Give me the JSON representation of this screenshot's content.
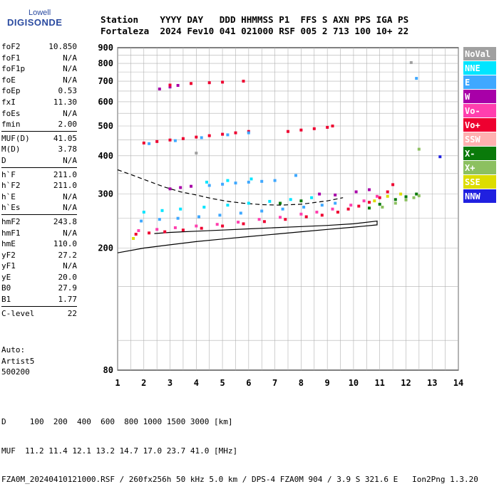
{
  "logo": {
    "top": "Lowell",
    "bottom": "DIGISONDE"
  },
  "header": {
    "line1": "Station    YYYY DAY   DDD HHMMSS P1  FFS S AXN PPS IGA PS",
    "line2": "Fortaleza  2024 Fev10 041 021000 RSF 005 2 713 100 10+ 22"
  },
  "params": {
    "groups": [
      [
        {
          "k": "foF2",
          "v": "10.850"
        },
        {
          "k": "foF1",
          "v": "N/A"
        },
        {
          "k": "foF1p",
          "v": "N/A"
        },
        {
          "k": "foE",
          "v": "N/A"
        },
        {
          "k": "foEp",
          "v": "0.53"
        },
        {
          "k": "fxI",
          "v": "11.30"
        },
        {
          "k": "foEs",
          "v": "N/A"
        },
        {
          "k": "fmin",
          "v": "2.00"
        }
      ],
      [
        {
          "k": "MUF(D)",
          "v": "41.05"
        },
        {
          "k": "M(D)",
          "v": "3.78"
        },
        {
          "k": "D",
          "v": "N/A"
        }
      ],
      [
        {
          "k": "h`F",
          "v": "211.0"
        },
        {
          "k": "h`F2",
          "v": "211.0"
        },
        {
          "k": "h`E",
          "v": "N/A"
        },
        {
          "k": "h`Es",
          "v": "N/A"
        }
      ],
      [
        {
          "k": "hmF2",
          "v": "243.8"
        },
        {
          "k": "hmF1",
          "v": "N/A"
        },
        {
          "k": "hmE",
          "v": "110.0"
        },
        {
          "k": "yF2",
          "v": "27.2"
        },
        {
          "k": "yF1",
          "v": "N/A"
        },
        {
          "k": "yE",
          "v": "20.0"
        },
        {
          "k": "B0",
          "v": "27.9"
        },
        {
          "k": "B1",
          "v": "1.77"
        }
      ],
      [
        {
          "k": "C-level",
          "v": "22"
        }
      ]
    ]
  },
  "auto": {
    "line1": "Auto:",
    "line2": "Artist5",
    "line3": "500200"
  },
  "bottom": {
    "line1": "D     100  200  400  600  800 1000 1500 3000 [km]",
    "line2": "MUF  11.2 11.4 12.1 13.2 14.7 17.0 23.7 41.0 [MHz]",
    "line3": "FZA0M_20240410121000.RSF / 260fx256h 50 kHz 5.0 km / DPS-4 FZA0M 904 / 3.9 S 321.6 E   Ion2Png 1.3.20"
  },
  "legend": [
    {
      "label": "NoVal",
      "color": "#a0a0a0"
    },
    {
      "label": "NNE",
      "color": "#00e5ff"
    },
    {
      "label": "E",
      "color": "#3fa8ff"
    },
    {
      "label": "W",
      "color": "#a800a8"
    },
    {
      "label": "Vo-",
      "color": "#ff3fae"
    },
    {
      "label": "Vo+",
      "color": "#ee0030"
    },
    {
      "label": "SSW",
      "color": "#ffb0b0"
    },
    {
      "label": "X-",
      "color": "#0a7a0a"
    },
    {
      "label": "X+",
      "color": "#8cc060"
    },
    {
      "label": "SSE",
      "color": "#dddd00"
    },
    {
      "label": "NNW",
      "color": "#2020e0"
    }
  ],
  "chart_data": {
    "type": "scatter",
    "xlim": [
      1,
      14
    ],
    "ylim": [
      80,
      900
    ],
    "yscale": "log",
    "xticks": [
      "1",
      "2",
      "3",
      "4",
      "5",
      "6",
      "7",
      "8",
      "9",
      "10",
      "11",
      "12",
      "13",
      "14"
    ],
    "yticks": [
      "80",
      "200",
      "300",
      "400",
      "500",
      "600",
      "700",
      "800",
      "900"
    ],
    "yticks_values": [
      80,
      200,
      300,
      400,
      500,
      600,
      700,
      800,
      900
    ],
    "grid": true,
    "legend_position": "right",
    "series": [
      {
        "color": "#ee0030",
        "points": [
          [
            1.7,
            222
          ],
          [
            2.2,
            224
          ],
          [
            2.8,
            226
          ],
          [
            3.5,
            229
          ],
          [
            4.2,
            232
          ],
          [
            5.0,
            236
          ],
          [
            5.8,
            240
          ],
          [
            6.6,
            244
          ],
          [
            7.4,
            248
          ],
          [
            8.2,
            253
          ],
          [
            8.8,
            256
          ],
          [
            9.4,
            262
          ],
          [
            9.8,
            268
          ],
          [
            10.2,
            274
          ],
          [
            10.6,
            282
          ],
          [
            11.0,
            292
          ],
          [
            11.3,
            305
          ],
          [
            11.5,
            322
          ]
        ]
      },
      {
        "color": "#ff3fae",
        "points": [
          [
            1.8,
            228
          ],
          [
            2.5,
            230
          ],
          [
            3.2,
            233
          ],
          [
            4.0,
            236
          ],
          [
            4.8,
            239
          ],
          [
            5.6,
            243
          ],
          [
            6.4,
            248
          ],
          [
            7.2,
            252
          ],
          [
            8.0,
            258
          ],
          [
            8.6,
            262
          ],
          [
            9.2,
            268
          ],
          [
            9.9,
            276
          ],
          [
            10.4,
            285
          ],
          [
            10.9,
            295
          ]
        ]
      },
      {
        "color": "#3fa8ff",
        "points": [
          [
            1.9,
            245
          ],
          [
            2.6,
            248
          ],
          [
            3.3,
            250
          ],
          [
            4.1,
            253
          ],
          [
            4.9,
            256
          ],
          [
            5.7,
            260
          ],
          [
            6.5,
            264
          ],
          [
            7.3,
            268
          ],
          [
            8.1,
            272
          ],
          [
            8.8,
            276
          ],
          [
            9.3,
            280
          ],
          [
            4.5,
            320
          ],
          [
            5.0,
            323
          ],
          [
            5.5,
            326
          ],
          [
            6.0,
            328
          ],
          [
            6.5,
            330
          ],
          [
            7.0,
            332
          ],
          [
            7.8,
            345
          ]
        ]
      },
      {
        "color": "#00e5ff",
        "points": [
          [
            2.0,
            262
          ],
          [
            2.7,
            265
          ],
          [
            3.4,
            268
          ],
          [
            4.3,
            272
          ],
          [
            5.2,
            276
          ],
          [
            6.0,
            280
          ],
          [
            6.8,
            284
          ],
          [
            7.6,
            288
          ],
          [
            8.4,
            292
          ],
          [
            4.4,
            328
          ],
          [
            5.2,
            332
          ],
          [
            6.1,
            336
          ]
        ]
      },
      {
        "color": "#a800a8",
        "points": [
          [
            3.0,
            312
          ],
          [
            3.4,
            315
          ],
          [
            3.8,
            318
          ],
          [
            8.7,
            300
          ],
          [
            9.3,
            298
          ],
          [
            10.1,
            305
          ],
          [
            10.6,
            310
          ],
          [
            2.6,
            660
          ],
          [
            3.0,
            670
          ],
          [
            3.3,
            678
          ]
        ]
      },
      {
        "color": "#0a7a0a",
        "points": [
          [
            10.6,
            270
          ],
          [
            11.0,
            278
          ],
          [
            11.6,
            288
          ],
          [
            12.0,
            294
          ],
          [
            12.4,
            300
          ],
          [
            7.2,
            280
          ],
          [
            8.0,
            285
          ]
        ]
      },
      {
        "color": "#8cc060",
        "points": [
          [
            11.1,
            272
          ],
          [
            11.6,
            280
          ],
          [
            12.0,
            287
          ],
          [
            12.3,
            292
          ],
          [
            12.5,
            296
          ],
          [
            12.5,
            420
          ]
        ]
      },
      {
        "color": "#dddd00",
        "points": [
          [
            1.6,
            215
          ],
          [
            10.8,
            285
          ],
          [
            11.3,
            295
          ],
          [
            11.8,
            300
          ]
        ]
      },
      {
        "color": "#ee0030",
        "points": [
          [
            2.0,
            440
          ],
          [
            2.5,
            445
          ],
          [
            3.0,
            450
          ],
          [
            3.5,
            455
          ],
          [
            4.0,
            460
          ],
          [
            4.5,
            465
          ],
          [
            5.0,
            470
          ],
          [
            5.5,
            475
          ],
          [
            6.0,
            480
          ],
          [
            7.5,
            480
          ],
          [
            8.0,
            485
          ],
          [
            8.5,
            490
          ],
          [
            9.0,
            495
          ],
          [
            9.2,
            500
          ],
          [
            3.0,
            680
          ],
          [
            3.8,
            688
          ],
          [
            4.5,
            692
          ],
          [
            5.0,
            695
          ],
          [
            5.8,
            700
          ]
        ]
      },
      {
        "color": "#3fa8ff",
        "points": [
          [
            2.2,
            438
          ],
          [
            3.2,
            448
          ],
          [
            4.2,
            458
          ],
          [
            5.2,
            468
          ],
          [
            6.0,
            475
          ],
          [
            12.4,
            715
          ]
        ]
      },
      {
        "color": "#2020e0",
        "points": [
          [
            13.3,
            397
          ]
        ]
      },
      {
        "color": "#a0a0a0",
        "points": [
          [
            12.2,
            805
          ],
          [
            4.0,
            408
          ]
        ]
      }
    ],
    "curves": [
      {
        "style": "solid",
        "points": [
          [
            1,
            193
          ],
          [
            2,
            200
          ],
          [
            3,
            205
          ],
          [
            4,
            210
          ],
          [
            5,
            214
          ],
          [
            6,
            218
          ],
          [
            7,
            222
          ],
          [
            8,
            226
          ],
          [
            9,
            230
          ],
          [
            10,
            234
          ],
          [
            10.9,
            238
          ],
          [
            10.9,
            245
          ],
          [
            10,
            240
          ],
          [
            9,
            237
          ],
          [
            8,
            235
          ],
          [
            7,
            233
          ],
          [
            6,
            231
          ],
          [
            5,
            229
          ],
          [
            4,
            227
          ],
          [
            3,
            225
          ],
          [
            2.4,
            223
          ]
        ]
      },
      {
        "style": "dashed",
        "points": [
          [
            1,
            360
          ],
          [
            1.6,
            345
          ],
          [
            2.2,
            330
          ],
          [
            2.8,
            316
          ],
          [
            3.4,
            305
          ],
          [
            4.0,
            298
          ],
          [
            4.6,
            290
          ],
          [
            5.2,
            284
          ],
          [
            5.8,
            280
          ],
          [
            6.5,
            277
          ],
          [
            7.2,
            276
          ],
          [
            8.0,
            278
          ],
          [
            9.0,
            285
          ],
          [
            9.6,
            292
          ]
        ]
      }
    ]
  }
}
